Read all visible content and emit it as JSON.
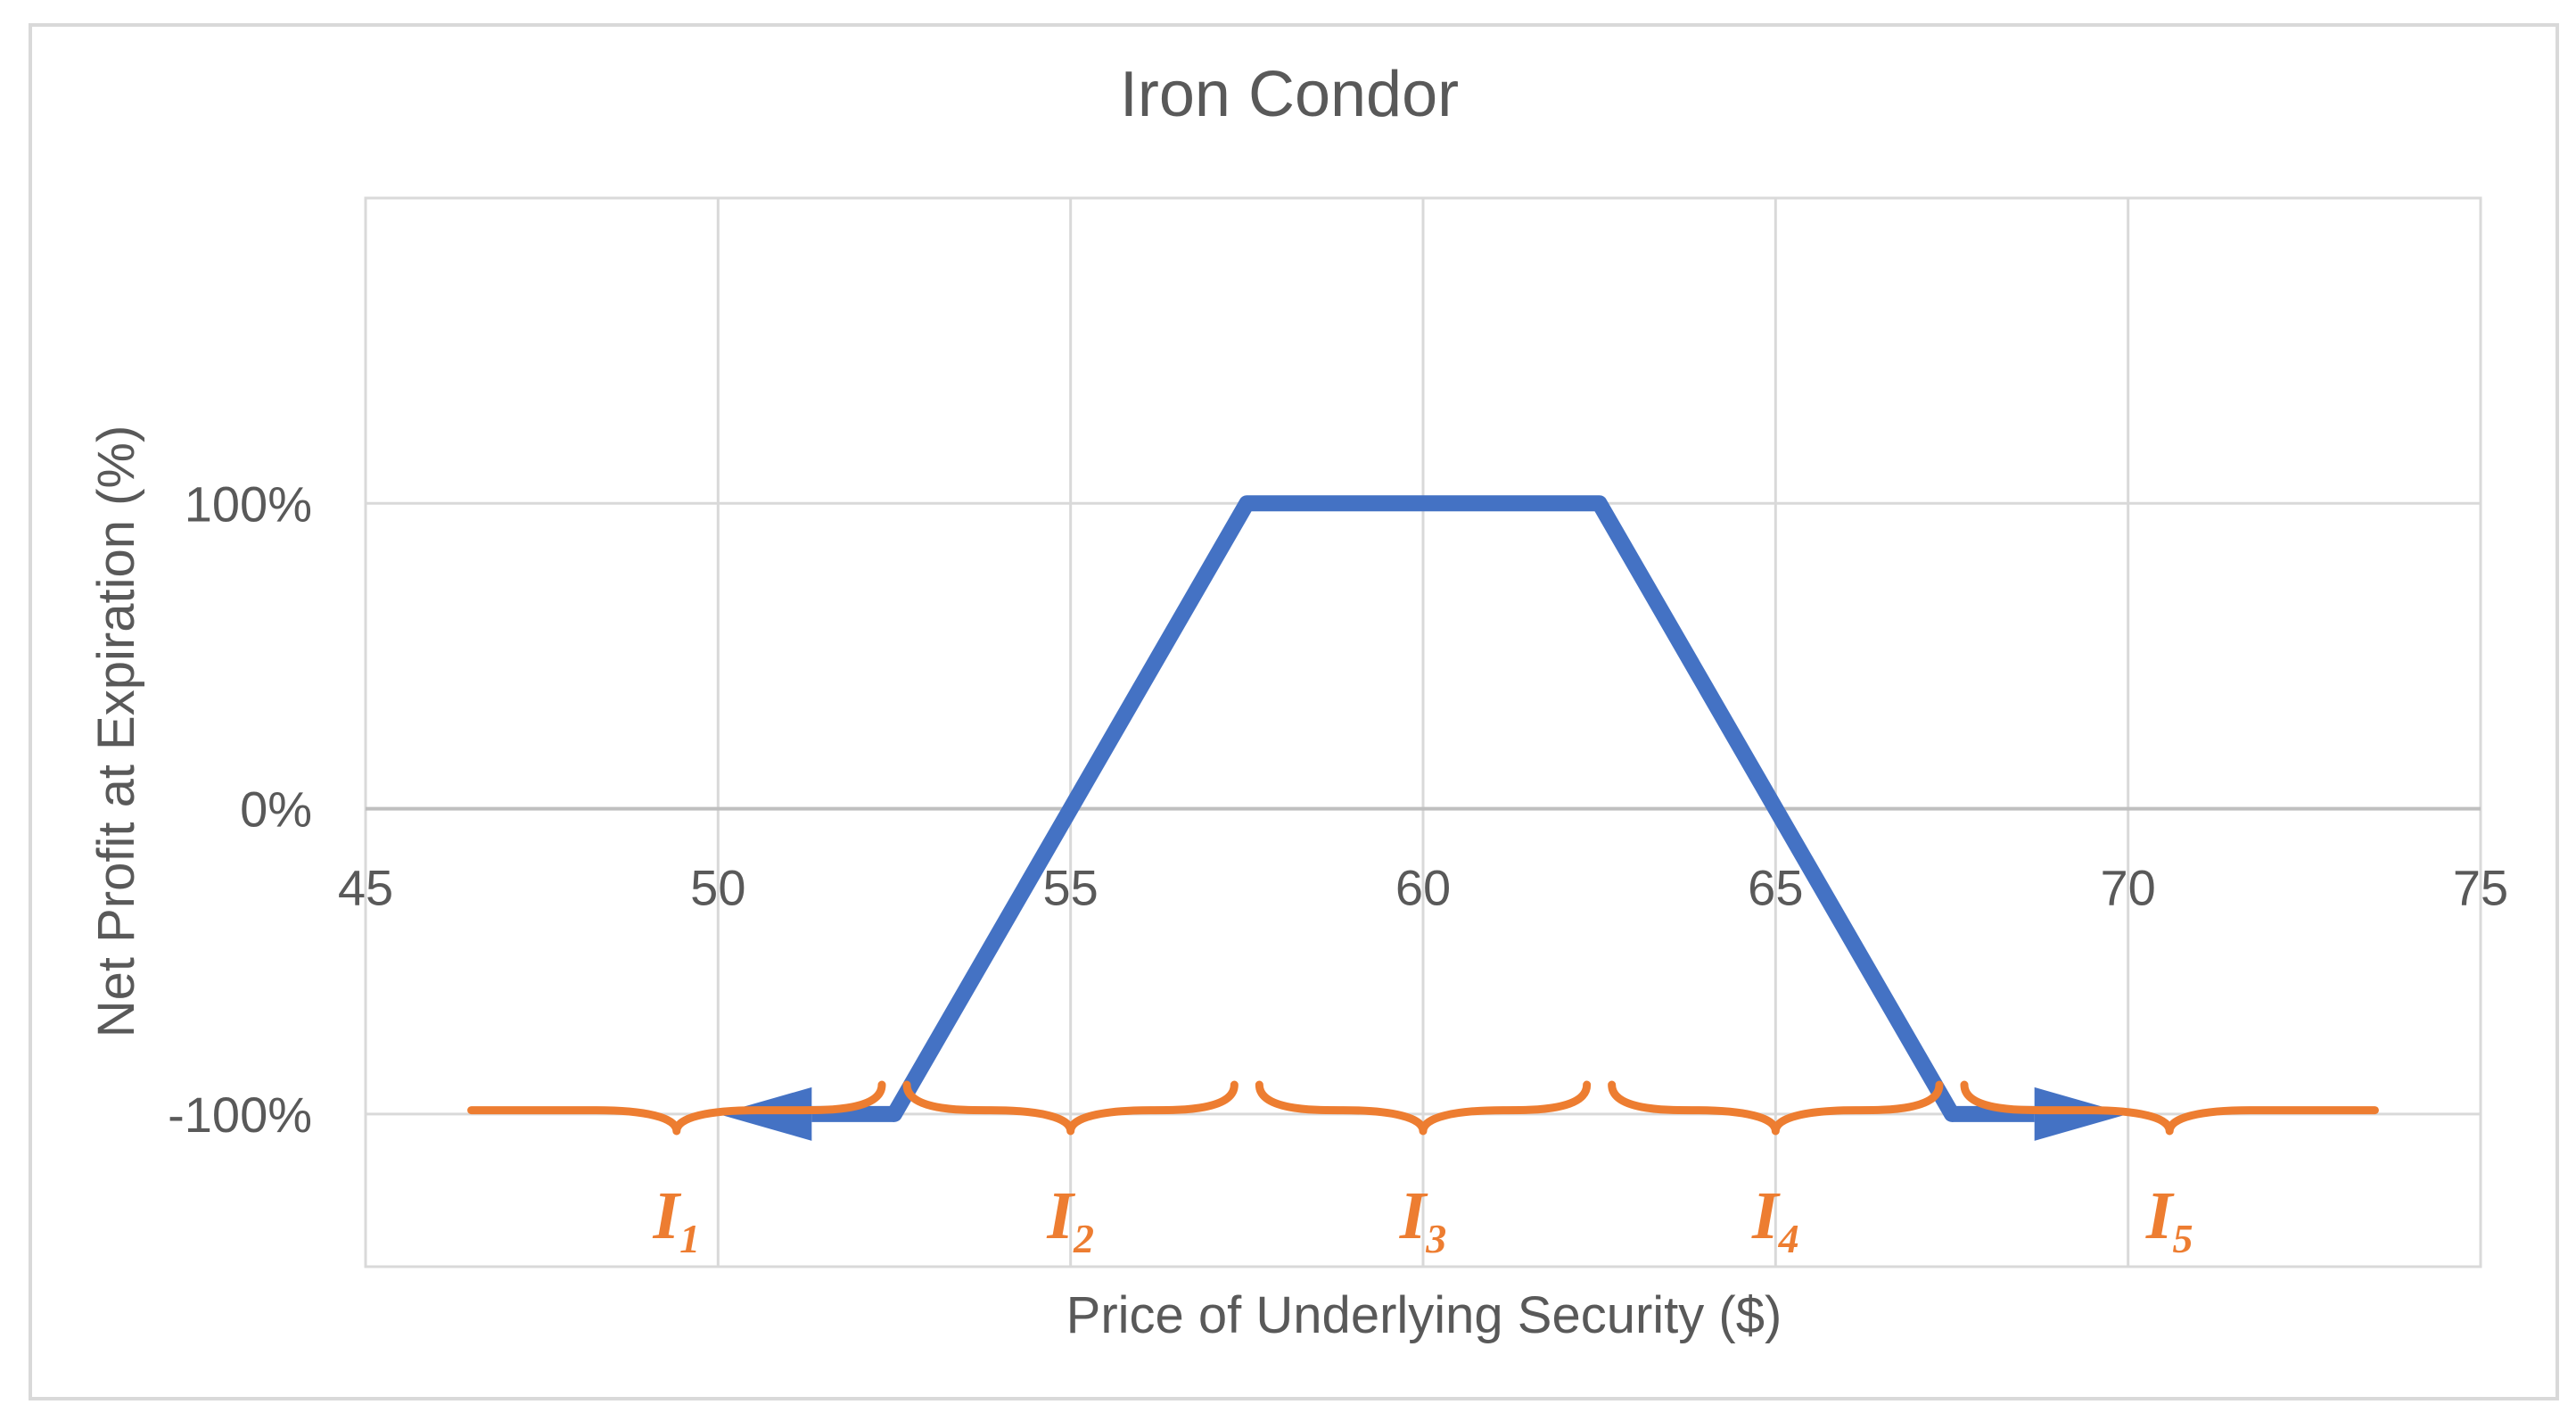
{
  "chart_data": {
    "type": "line",
    "title": "Iron Condor",
    "xlabel": "Price of Underlying Security ($)",
    "ylabel": "Net Profit at Expiration (%)",
    "xlim": [
      45,
      75
    ],
    "ylim": [
      -150,
      200
    ],
    "x_ticks": [
      "45",
      "50",
      "55",
      "60",
      "65",
      "70",
      "75"
    ],
    "x_tick_values": [
      45,
      50,
      55,
      60,
      65,
      70,
      75
    ],
    "y_ticks": [
      "-100%",
      "0%",
      "100%"
    ],
    "y_tick_values": [
      -100,
      0,
      100
    ],
    "grid": true,
    "series": [
      {
        "x": [
          52.5,
          55,
          57.5,
          62.5,
          65,
          66.5,
          67.5
        ],
        "y": [
          -100,
          0,
          100,
          100,
          0,
          -60,
          -100
        ]
      }
    ],
    "arrows": [
      {
        "from": [
          52.5,
          -100
        ],
        "to": [
          50,
          -100
        ]
      },
      {
        "from": [
          67.5,
          -100
        ],
        "to": [
          70,
          -100
        ]
      }
    ],
    "intervals": [
      {
        "label": "I",
        "sub": "1",
        "x_start": 46.5,
        "x_end": 52.5
      },
      {
        "label": "I",
        "sub": "2",
        "x_start": 52.5,
        "x_end": 57.5
      },
      {
        "label": "I",
        "sub": "3",
        "x_start": 57.5,
        "x_end": 62.5
      },
      {
        "label": "I",
        "sub": "4",
        "x_start": 62.5,
        "x_end": 67.5
      },
      {
        "label": "I",
        "sub": "5",
        "x_start": 67.5,
        "x_end": 73.5
      }
    ],
    "colors": {
      "line": "#4472C4",
      "brace": "#ED7D31",
      "grid": "#D9D9D9",
      "text": "#595959",
      "border": "#D9D9D9"
    }
  }
}
